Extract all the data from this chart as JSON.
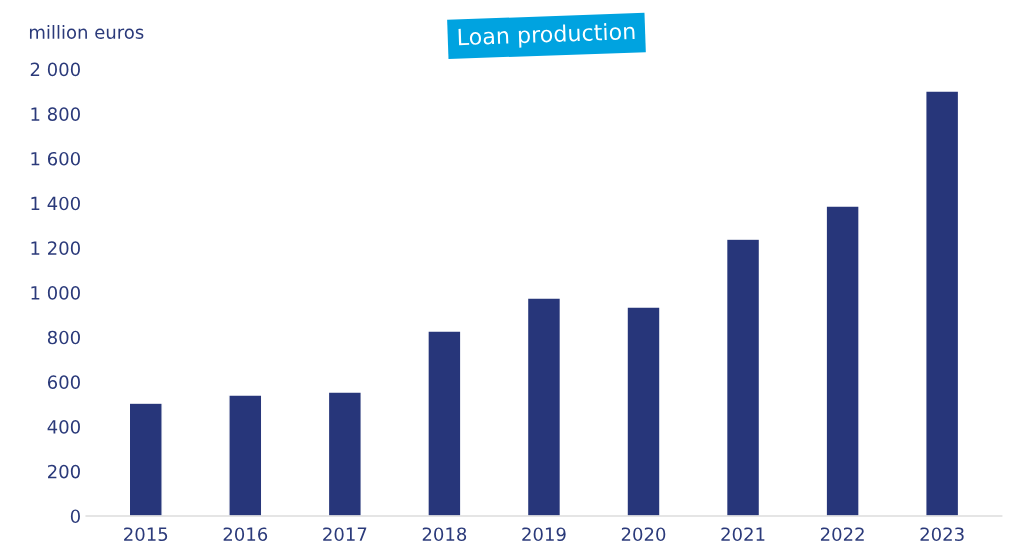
{
  "chart_data": {
    "type": "bar",
    "title": "Loan production",
    "ylabel": "million euros",
    "categories": [
      "2015",
      "2016",
      "2017",
      "2018",
      "2019",
      "2020",
      "2021",
      "2022",
      "2023"
    ],
    "values": [
      505,
      541,
      555,
      828,
      975,
      935,
      1239,
      1387,
      1902
    ],
    "color": "#27367a",
    "ylim": [
      0,
      2000
    ],
    "yticks": [
      0,
      200,
      400,
      600,
      800,
      {
        "value": 1000,
        "label": "1 000"
      },
      {
        "value": 1200,
        "label": "1 200"
      },
      {
        "value": 1400,
        "label": "1 400"
      },
      {
        "value": 1600,
        "label": "1 600"
      },
      {
        "value": 1800,
        "label": "1 800"
      },
      {
        "value": 2000,
        "label": "2 000"
      }
    ],
    "grid": false,
    "legend": false
  }
}
